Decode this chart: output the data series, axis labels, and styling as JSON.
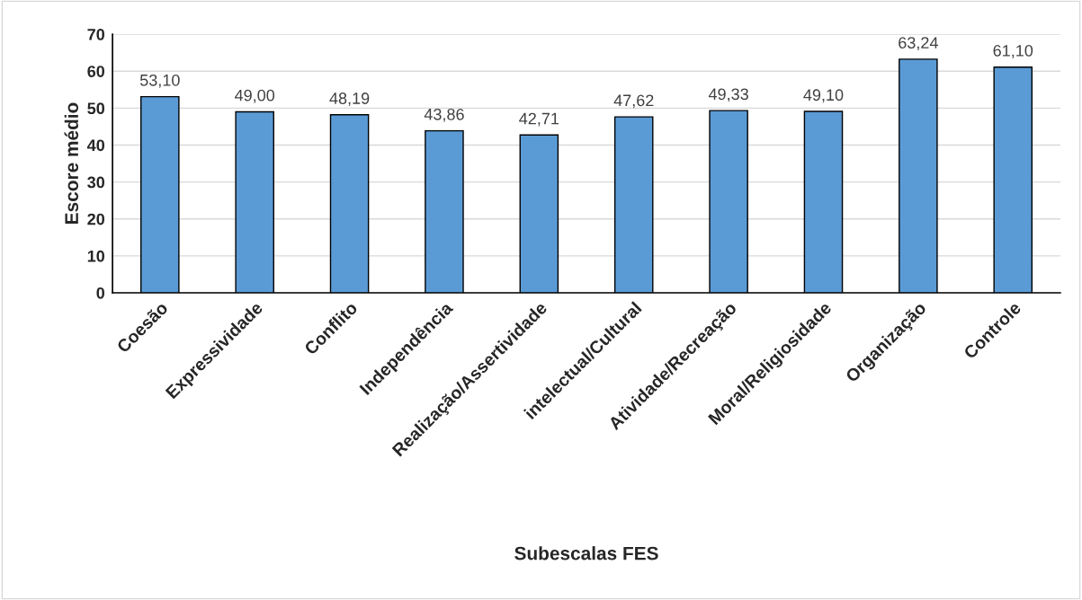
{
  "chart_data": {
    "type": "bar",
    "xlabel": "Subescalas FES",
    "ylabel": "Escore médio",
    "categories": [
      "Coesão",
      "Expressividade",
      "Conflito",
      "Independência",
      "Realização/Assertividade",
      "intelectual/Cultural",
      "Atividade/Recreação",
      "Moral/Religiosidade",
      "Organização",
      "Controle"
    ],
    "values": [
      53.1,
      49.0,
      48.19,
      43.86,
      42.71,
      47.62,
      49.33,
      49.1,
      63.24,
      61.1
    ],
    "value_labels": [
      "53,10",
      "49,00",
      "48,19",
      "43,86",
      "42,71",
      "47,62",
      "49,33",
      "49,10",
      "63,24",
      "61,10"
    ],
    "color": "#5b9bd5",
    "ylim": [
      0,
      70
    ],
    "yticks": [
      0,
      10,
      20,
      30,
      40,
      50,
      60,
      70
    ],
    "grid": "y"
  }
}
